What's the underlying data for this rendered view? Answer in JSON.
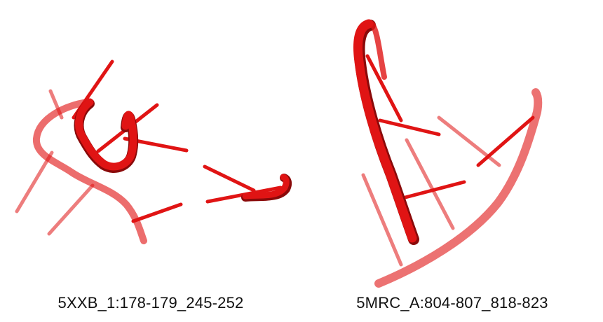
{
  "colors": {
    "strand": "#e01414",
    "strand_shadow": "#8a0a0a"
  },
  "structures": [
    {
      "caption": "5XXB_1:178-179_245-252"
    },
    {
      "caption": "5MRC_A:804-807_818-823"
    }
  ]
}
